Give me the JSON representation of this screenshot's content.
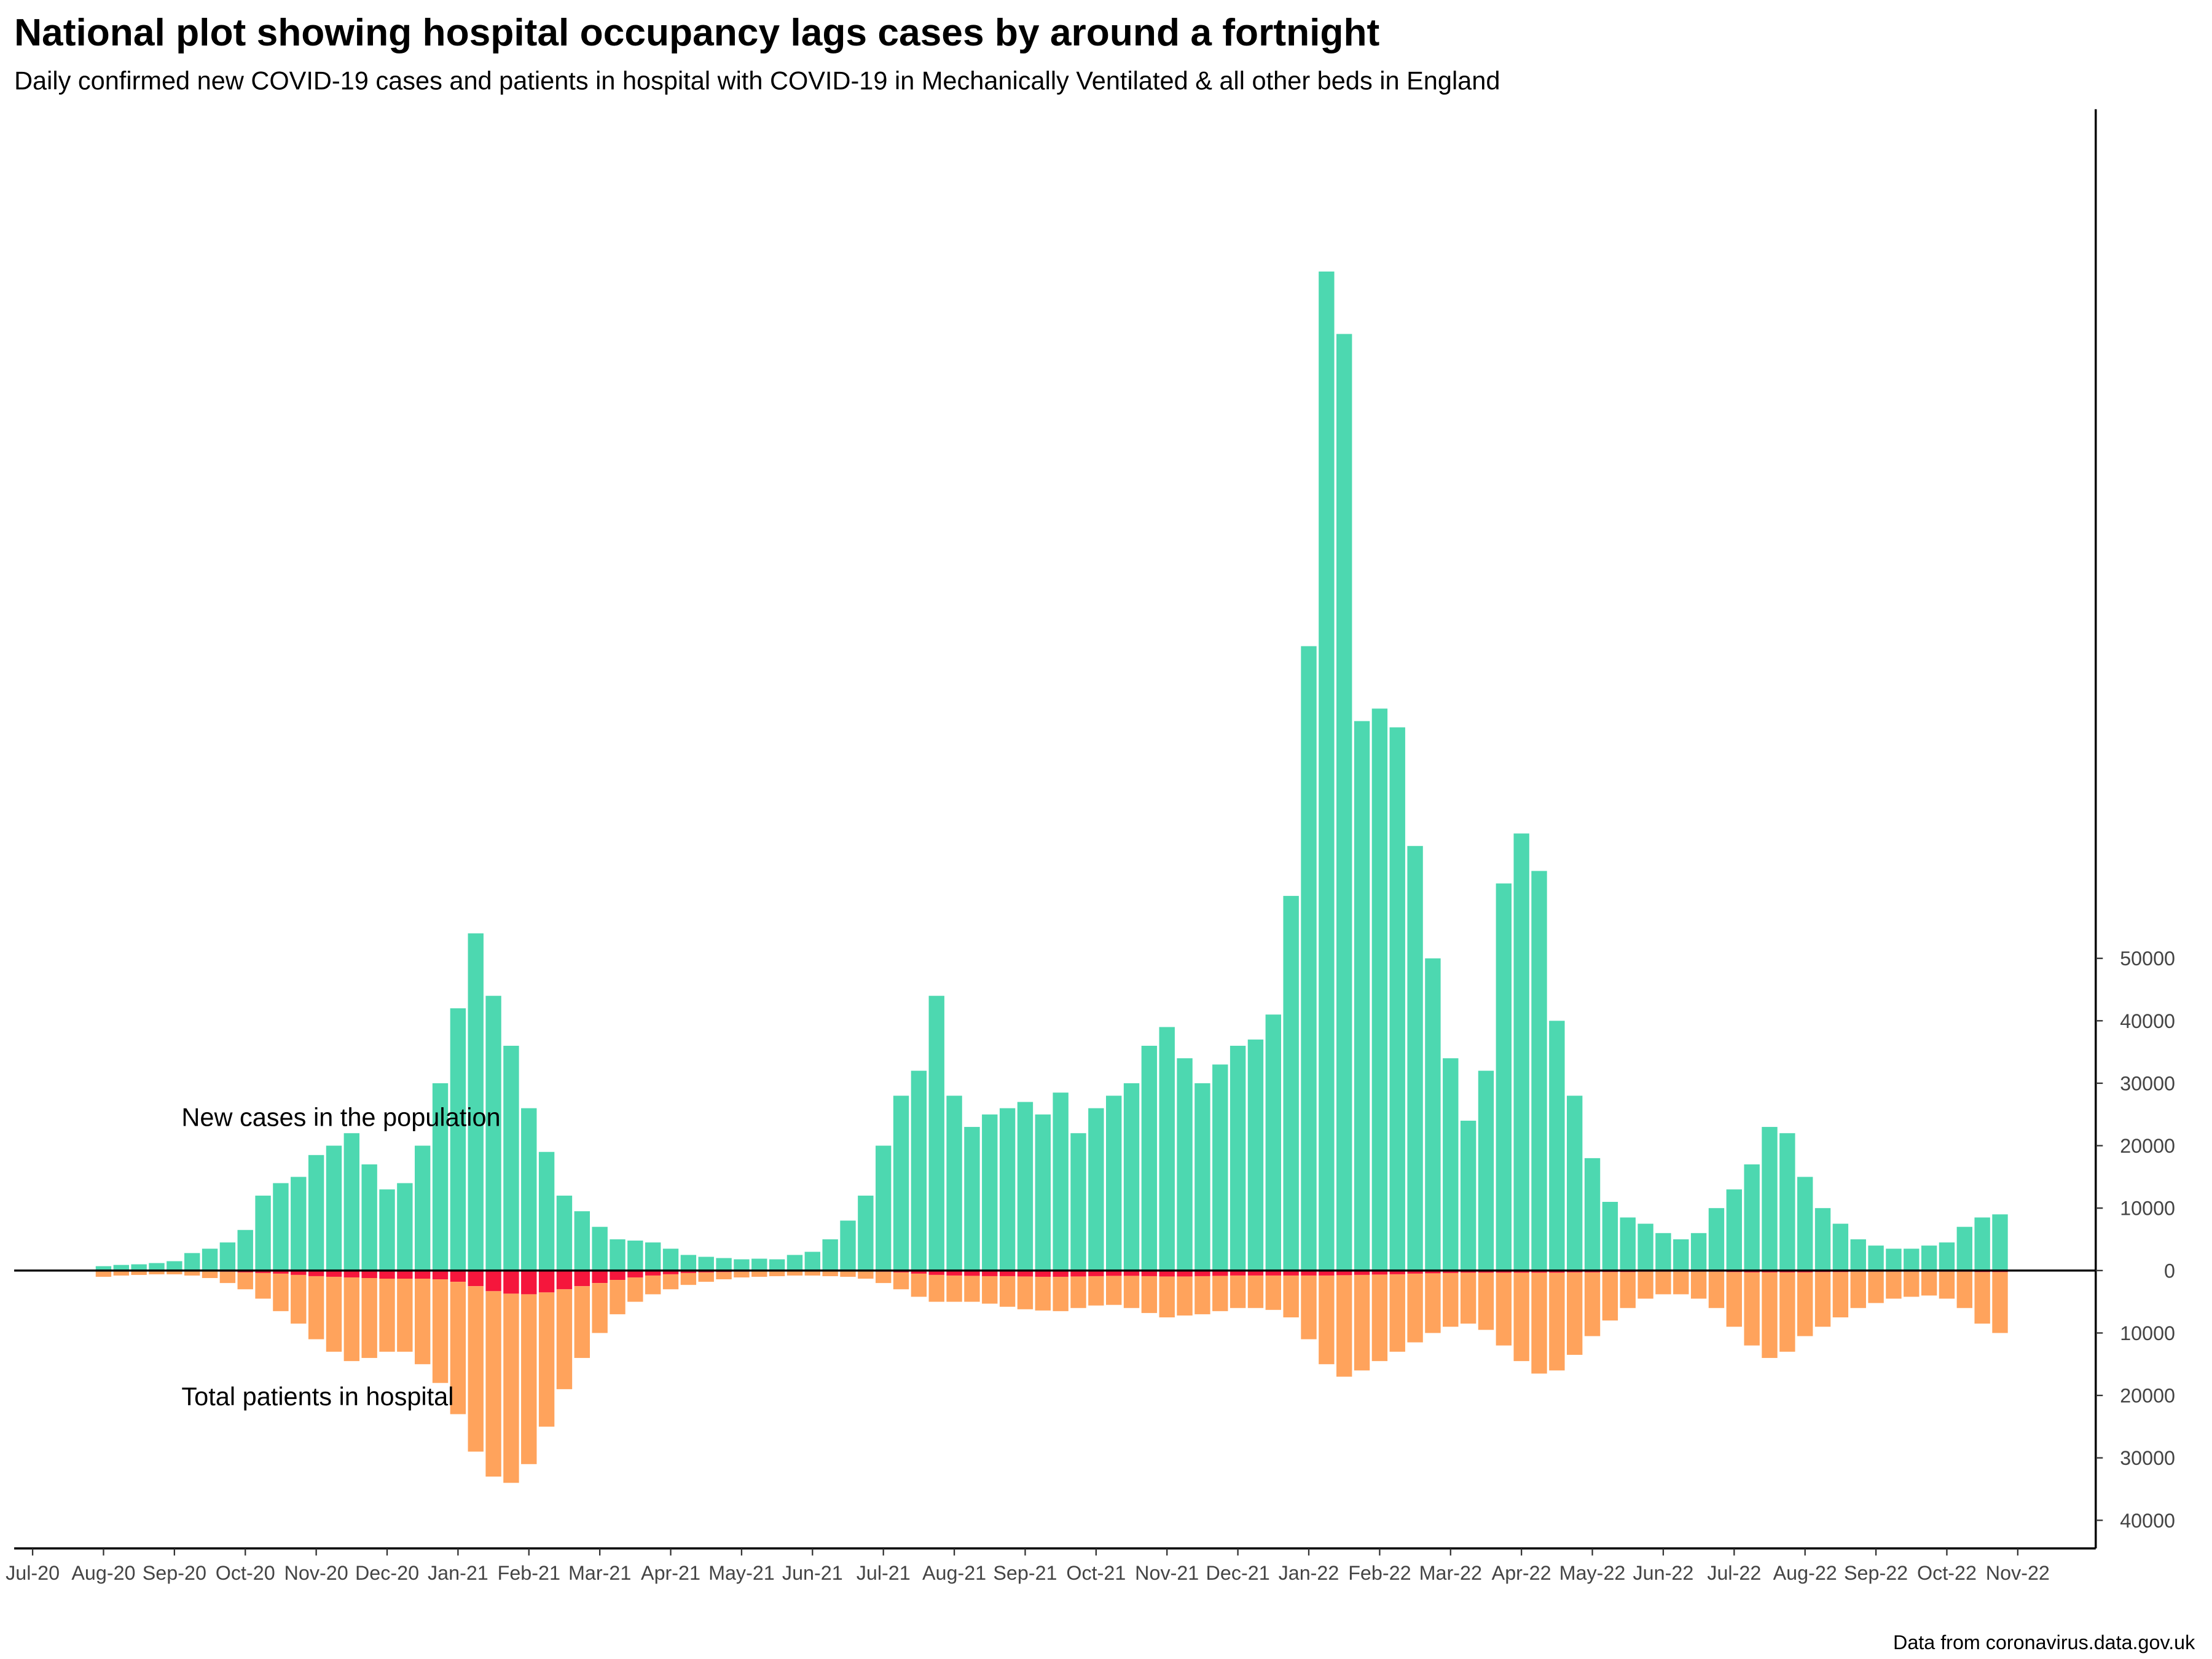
{
  "chart_data": {
    "type": "bar",
    "title": "National plot showing hospital occupancy lags cases by around a fortnight",
    "subtitle": "Daily confirmed new COVID-19 cases and patients in hospital with COVID-19 in Mechanically Ventilated & all other beds in England",
    "source": "Data from coronavirus.data.gov.uk",
    "annotations": [
      "New cases in the population",
      "Total patients in hospital"
    ],
    "x": [
      1,
      1.25,
      1.5,
      1.75,
      2,
      2.25,
      2.5,
      2.75,
      3,
      3.25,
      3.5,
      3.75,
      4,
      4.25,
      4.5,
      4.75,
      5,
      5.25,
      5.5,
      5.75,
      6,
      6.25,
      6.5,
      6.75,
      7,
      7.25,
      7.5,
      7.75,
      8,
      8.25,
      8.5,
      8.75,
      9,
      9.25,
      9.5,
      9.75,
      10,
      10.25,
      10.5,
      10.75,
      11,
      11.25,
      11.5,
      11.75,
      12,
      12.25,
      12.5,
      12.75,
      13,
      13.25,
      13.5,
      13.75,
      14,
      14.25,
      14.5,
      14.75,
      15,
      15.25,
      15.5,
      15.75,
      16,
      16.25,
      16.5,
      16.75,
      17,
      17.25,
      17.5,
      17.75,
      18,
      18.25,
      18.5,
      18.75,
      19,
      19.25,
      19.5,
      19.75,
      20,
      20.25,
      20.5,
      20.75,
      21,
      21.25,
      21.5,
      21.75,
      22,
      22.25,
      22.5,
      22.75,
      23,
      23.25,
      23.5,
      23.75,
      24,
      24.25,
      24.5,
      24.75,
      25,
      25.25,
      25.5,
      25.75,
      26,
      26.25,
      26.5,
      26.75,
      27,
      27.25,
      27.5,
      27.75
    ],
    "series": [
      {
        "color": "#4dd8b0",
        "values": [
          700,
          900,
          1000,
          1200,
          1500,
          2800,
          3500,
          4500,
          6500,
          12000,
          14000,
          15000,
          18500,
          20000,
          22000,
          17000,
          13000,
          14000,
          20000,
          30000,
          42000,
          54000,
          44000,
          36000,
          26000,
          19000,
          12000,
          9500,
          7000,
          5000,
          4800,
          4500,
          3500,
          2500,
          2200,
          2000,
          1800,
          1900,
          1800,
          2500,
          3000,
          5000,
          8000,
          12000,
          20000,
          28000,
          32000,
          44000,
          28000,
          23000,
          25000,
          26000,
          27000,
          25000,
          28500,
          22000,
          26000,
          28000,
          30000,
          36000,
          39000,
          34000,
          30000,
          33000,
          36000,
          37000,
          41000,
          60000,
          100000,
          160000,
          150000,
          88000,
          90000,
          87000,
          68000,
          50000,
          34000,
          24000,
          32000,
          62000,
          70000,
          64000,
          40000,
          28000,
          18000,
          11000,
          8500,
          7500,
          6000,
          5000,
          6000,
          10000,
          13000,
          17000,
          23000,
          22000,
          15000,
          10000,
          7500,
          5000,
          4000,
          3500,
          3500,
          4000,
          4500,
          7000,
          8500,
          9000
        ]
      },
      {
        "color": "#f5163c",
        "values": [
          -100,
          -100,
          -100,
          -100,
          -100,
          -100,
          -150,
          -200,
          -300,
          -400,
          -500,
          -700,
          -900,
          -1000,
          -1100,
          -1200,
          -1300,
          -1300,
          -1300,
          -1400,
          -1800,
          -2500,
          -3300,
          -3700,
          -3800,
          -3500,
          -3000,
          -2500,
          -2000,
          -1500,
          -1100,
          -800,
          -600,
          -400,
          -300,
          -250,
          -200,
          -150,
          -130,
          -120,
          -120,
          -120,
          -130,
          -150,
          -200,
          -300,
          -500,
          -700,
          -800,
          -850,
          -900,
          -900,
          -950,
          -1000,
          -1000,
          -950,
          -900,
          -850,
          -850,
          -900,
          -950,
          -950,
          -900,
          -850,
          -800,
          -800,
          -800,
          -800,
          -800,
          -800,
          -750,
          -700,
          -650,
          -600,
          -500,
          -450,
          -400,
          -350,
          -350,
          -350,
          -350,
          -350,
          -350,
          -300,
          -300,
          -250,
          -250,
          -200,
          -200,
          -200,
          -200,
          -200,
          -250,
          -300,
          -300,
          -300,
          -300,
          -250,
          -250,
          -200,
          -200,
          -200,
          -200,
          -200,
          -200,
          -200,
          -250,
          -250
        ]
      },
      {
        "color": "#ffa35c",
        "values": [
          -900,
          -700,
          -600,
          -500,
          -500,
          -700,
          -1050,
          -1800,
          -2700,
          -4100,
          -6000,
          -7800,
          -10100,
          -12000,
          -13400,
          -12800,
          -11700,
          -11700,
          -13700,
          -16600,
          -21200,
          -26500,
          -29700,
          -30300,
          -27200,
          -21500,
          -16000,
          -11500,
          -8000,
          -5500,
          -3900,
          -3000,
          -2400,
          -1900,
          -1500,
          -1150,
          -900,
          -850,
          -770,
          -680,
          -680,
          -780,
          -870,
          -1150,
          -1800,
          -2700,
          -3700,
          -4300,
          -4200,
          -4150,
          -4400,
          -4900,
          -5250,
          -5400,
          -5500,
          -5050,
          -4700,
          -4650,
          -5150,
          -5900,
          -6550,
          -6250,
          -6100,
          -5650,
          -5200,
          -5200,
          -5500,
          -6700,
          -10200,
          -14200,
          -16250,
          -15300,
          -13850,
          -12400,
          -11000,
          -9550,
          -8600,
          -8150,
          -9150,
          -11650,
          -14150,
          -16150,
          -15650,
          -13200,
          -10200,
          -7750,
          -5750,
          -4300,
          -3600,
          -3600,
          -4300,
          -5800,
          -8750,
          -11700,
          -13700,
          -12700,
          -10200,
          -8750,
          -7250,
          -5800,
          -5000,
          -4300,
          -4000,
          -3800,
          -4300,
          -5800,
          -8250,
          -9750
        ]
      }
    ],
    "xlim": [
      -0.26,
      29.1
    ],
    "xticks": [
      {
        "value": 0,
        "label": "Jul-20"
      },
      {
        "value": 1,
        "label": "Aug-20"
      },
      {
        "value": 2,
        "label": "Sep-20"
      },
      {
        "value": 3,
        "label": "Oct-20"
      },
      {
        "value": 4,
        "label": "Nov-20"
      },
      {
        "value": 5,
        "label": "Dec-20"
      },
      {
        "value": 6,
        "label": "Jan-21"
      },
      {
        "value": 7,
        "label": "Feb-21"
      },
      {
        "value": 8,
        "label": "Mar-21"
      },
      {
        "value": 9,
        "label": "Apr-21"
      },
      {
        "value": 10,
        "label": "May-21"
      },
      {
        "value": 11,
        "label": "Jun-21"
      },
      {
        "value": 12,
        "label": "Jul-21"
      },
      {
        "value": 13,
        "label": "Aug-21"
      },
      {
        "value": 14,
        "label": "Sep-21"
      },
      {
        "value": 15,
        "label": "Oct-21"
      },
      {
        "value": 16,
        "label": "Nov-21"
      },
      {
        "value": 17,
        "label": "Dec-21"
      },
      {
        "value": 18,
        "label": "Jan-22"
      },
      {
        "value": 19,
        "label": "Feb-22"
      },
      {
        "value": 20,
        "label": "Mar-22"
      },
      {
        "value": 21,
        "label": "Apr-22"
      },
      {
        "value": 22,
        "label": "May-22"
      },
      {
        "value": 23,
        "label": "Jun-22"
      },
      {
        "value": 24,
        "label": "Jul-22"
      },
      {
        "value": 25,
        "label": "Aug-22"
      },
      {
        "value": 26,
        "label": "Sep-22"
      },
      {
        "value": 27,
        "label": "Oct-22"
      },
      {
        "value": 28,
        "label": "Nov-22"
      }
    ],
    "ylim": [
      -44500,
      186000
    ],
    "yticks": [
      {
        "value": -40000,
        "label": "40000"
      },
      {
        "value": -30000,
        "label": "30000"
      },
      {
        "value": -20000,
        "label": "20000"
      },
      {
        "value": -10000,
        "label": "10000"
      },
      0,
      10000,
      20000,
      30000,
      40000,
      50000
    ]
  }
}
